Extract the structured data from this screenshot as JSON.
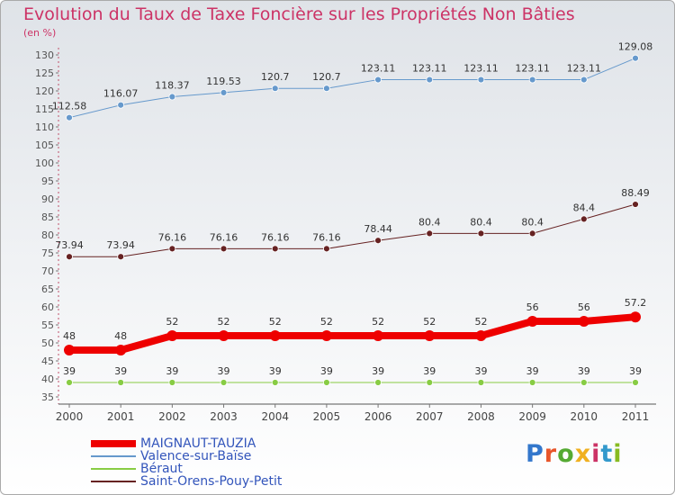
{
  "title": "Evolution du Taux de Taxe Foncière sur les Propriétés Non Bâties",
  "unit_label": "(en %)",
  "logo": {
    "text": "Proxiti",
    "colors": [
      "#3377cc",
      "#e8552a",
      "#55aa33",
      "#f0b020",
      "#cc3366",
      "#3399cc",
      "#88bb22"
    ]
  },
  "chart_data": {
    "type": "line",
    "title": "Evolution du Taux de Taxe Foncière sur les Propriétés Non Bâties",
    "ylabel": "(en %)",
    "xlabel": "",
    "categories": [
      "2000",
      "2001",
      "2002",
      "2003",
      "2004",
      "2005",
      "2006",
      "2007",
      "2008",
      "2009",
      "2010",
      "2011"
    ],
    "ylim": [
      35,
      130
    ],
    "yticks": [
      35,
      40,
      45,
      50,
      55,
      60,
      65,
      70,
      75,
      80,
      85,
      90,
      95,
      100,
      105,
      110,
      115,
      120,
      125,
      130
    ],
    "grid": false,
    "legend": "bottom-left",
    "series": [
      {
        "name": "MAIGNAUT-TAUZIA",
        "color": "#ee0000",
        "width": 8,
        "values": [
          48,
          48,
          52,
          52,
          52,
          52,
          52,
          52,
          52,
          56,
          56,
          57.2
        ],
        "labels": [
          "48",
          "48",
          "52",
          "52",
          "52",
          "52",
          "52",
          "52",
          "52",
          "56",
          "56",
          "57.2"
        ]
      },
      {
        "name": "Valence-sur-Baïse",
        "color": "#6699cc",
        "width": 1,
        "values": [
          112.58,
          116.07,
          118.37,
          119.53,
          120.7,
          120.7,
          123.11,
          123.11,
          123.11,
          123.11,
          123.11,
          129.08
        ],
        "labels": [
          "112.58",
          "116.07",
          "118.37",
          "119.53",
          "120.7",
          "120.7",
          "123.11",
          "123.11",
          "123.11",
          "123.11",
          "123.11",
          "129.08"
        ]
      },
      {
        "name": "Béraut",
        "color": "#88cc44",
        "width": 1,
        "values": [
          39,
          39,
          39,
          39,
          39,
          39,
          39,
          39,
          39,
          39,
          39,
          39
        ],
        "labels": [
          "39",
          "39",
          "39",
          "39",
          "39",
          "39",
          "39",
          "39",
          "39",
          "39",
          "39",
          "39"
        ]
      },
      {
        "name": "Saint-Orens-Pouy-Petit",
        "color": "#662222",
        "width": 1,
        "values": [
          73.94,
          73.94,
          76.16,
          76.16,
          76.16,
          76.16,
          78.44,
          80.4,
          80.4,
          80.4,
          84.4,
          88.49
        ],
        "labels": [
          "73.94",
          "73.94",
          "76.16",
          "76.16",
          "76.16",
          "76.16",
          "78.44",
          "80.4",
          "80.4",
          "80.4",
          "84.4",
          "88.49"
        ]
      }
    ]
  }
}
